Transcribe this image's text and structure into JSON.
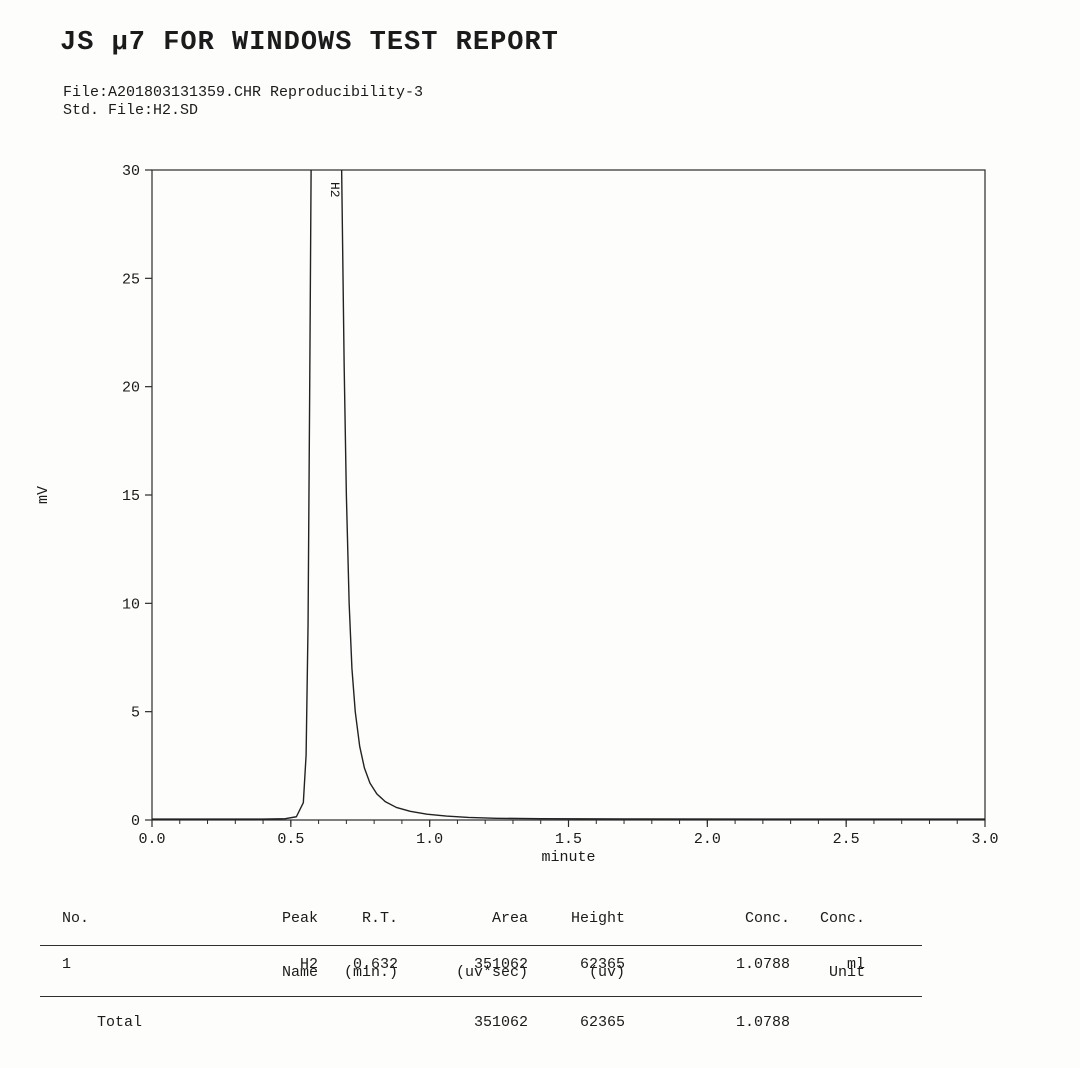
{
  "report": {
    "title": "JS μ7 FOR WINDOWS TEST REPORT",
    "file_line": "File:A201803131359.CHR Reproducibility-3",
    "std_file_line": "Std. File:H2.SD"
  },
  "chart_data": {
    "type": "line",
    "title": "",
    "xlabel": "minute",
    "ylabel": "mV",
    "xlim": [
      0.0,
      3.0
    ],
    "ylim": [
      0,
      30
    ],
    "x_ticks": [
      0.0,
      0.5,
      1.0,
      1.5,
      2.0,
      2.5,
      3.0
    ],
    "x_tick_labels": [
      "0.0",
      "0.5",
      "1.0",
      "1.5",
      "2.0",
      "2.5",
      "3.0"
    ],
    "x_minor_step": 0.1,
    "y_ticks": [
      0,
      5,
      10,
      15,
      20,
      25,
      30
    ],
    "y_tick_labels": [
      "0",
      "5",
      "10",
      "15",
      "20",
      "25",
      "30"
    ],
    "grid": false,
    "legend": "none",
    "peak_labels": [
      {
        "text": "H2",
        "x": 0.645
      }
    ],
    "series": [
      {
        "name": "H2 signal",
        "points": [
          [
            0.0,
            0.04
          ],
          [
            0.4,
            0.04
          ],
          [
            0.48,
            0.06
          ],
          [
            0.52,
            0.15
          ],
          [
            0.545,
            0.8
          ],
          [
            0.555,
            3.0
          ],
          [
            0.562,
            9.0
          ],
          [
            0.568,
            20.0
          ],
          [
            0.575,
            34.0
          ],
          [
            0.59,
            52.0
          ],
          [
            0.61,
            60.0
          ],
          [
            0.632,
            62.4
          ],
          [
            0.652,
            57.0
          ],
          [
            0.665,
            48.0
          ],
          [
            0.675,
            38.0
          ],
          [
            0.684,
            29.0
          ],
          [
            0.692,
            21.0
          ],
          [
            0.7,
            15.0
          ],
          [
            0.71,
            10.0
          ],
          [
            0.72,
            7.0
          ],
          [
            0.732,
            5.0
          ],
          [
            0.748,
            3.4
          ],
          [
            0.765,
            2.4
          ],
          [
            0.785,
            1.7
          ],
          [
            0.81,
            1.2
          ],
          [
            0.84,
            0.85
          ],
          [
            0.88,
            0.58
          ],
          [
            0.93,
            0.4
          ],
          [
            0.99,
            0.27
          ],
          [
            1.06,
            0.18
          ],
          [
            1.14,
            0.12
          ],
          [
            1.24,
            0.08
          ],
          [
            1.4,
            0.06
          ],
          [
            1.7,
            0.05
          ],
          [
            2.2,
            0.04
          ],
          [
            3.0,
            0.04
          ]
        ]
      }
    ]
  },
  "table": {
    "headers": [
      [
        "No.",
        ""
      ],
      [
        "Peak",
        "Name"
      ],
      [
        "R.T.",
        "(min.)"
      ],
      [
        "Area",
        "(uv*sec)"
      ],
      [
        "Height",
        "(uv)"
      ],
      [
        "Conc.",
        ""
      ],
      [
        "Conc.",
        "Unit"
      ]
    ],
    "rows": [
      [
        "1",
        "H2",
        "0.632",
        "351062",
        "62365",
        "1.0788",
        "ml"
      ]
    ],
    "total_row": [
      "",
      "Total",
      "",
      "351062",
      "62365",
      "1.0788",
      ""
    ]
  }
}
